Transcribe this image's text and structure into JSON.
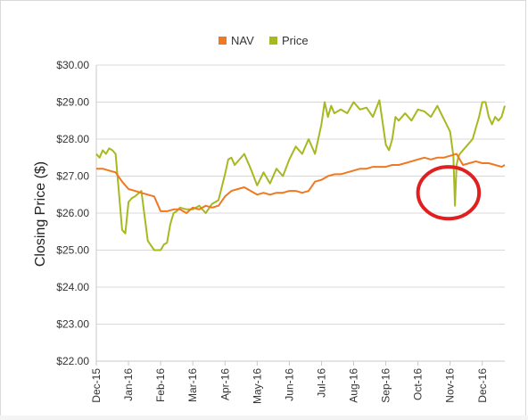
{
  "chart_data": {
    "type": "line",
    "ylabel": "Closing Price ($)",
    "ylim": [
      22,
      30
    ],
    "yticks": [
      "$22.00",
      "$23.00",
      "$24.00",
      "$25.00",
      "$26.00",
      "$27.00",
      "$28.00",
      "$29.00",
      "$30.00"
    ],
    "xticks": [
      "Dec-15",
      "Jan-16",
      "Feb-16",
      "Mar-16",
      "Apr-16",
      "May-16",
      "Jun-16",
      "Jul-16",
      "Aug-16",
      "Sep-16",
      "Oct-16",
      "Nov-16",
      "Dec-16"
    ],
    "grid": true,
    "legend_position": "top-center",
    "series": [
      {
        "name": "NAV",
        "color": "#f07820",
        "x": [
          0,
          0.2,
          0.4,
          0.6,
          0.8,
          1,
          1.2,
          1.4,
          1.6,
          1.8,
          2,
          2.2,
          2.4,
          2.6,
          2.8,
          3,
          3.2,
          3.4,
          3.6,
          3.8,
          4,
          4.2,
          4.4,
          4.6,
          4.8,
          5,
          5.2,
          5.4,
          5.6,
          5.8,
          6,
          6.2,
          6.4,
          6.6,
          6.8,
          7,
          7.2,
          7.4,
          7.6,
          7.8,
          8,
          8.2,
          8.4,
          8.6,
          8.8,
          9,
          9.2,
          9.4,
          9.6,
          9.8,
          10,
          10.2,
          10.4,
          10.6,
          10.8,
          11,
          11.2,
          11.4,
          11.6,
          11.8,
          12,
          12.2,
          12.4,
          12.6,
          12.7
        ],
        "y": [
          27.2,
          27.2,
          27.15,
          27.1,
          26.85,
          26.65,
          26.6,
          26.55,
          26.5,
          26.45,
          26.05,
          26.05,
          26.1,
          26.1,
          26.0,
          26.15,
          26.1,
          26.2,
          26.15,
          26.2,
          26.45,
          26.6,
          26.65,
          26.7,
          26.6,
          26.5,
          26.55,
          26.5,
          26.55,
          26.55,
          26.6,
          26.6,
          26.55,
          26.6,
          26.85,
          26.9,
          27.0,
          27.05,
          27.05,
          27.1,
          27.15,
          27.2,
          27.2,
          27.25,
          27.25,
          27.25,
          27.3,
          27.3,
          27.35,
          27.4,
          27.45,
          27.5,
          27.45,
          27.5,
          27.5,
          27.55,
          27.6,
          27.3,
          27.35,
          27.4,
          27.35,
          27.35,
          27.3,
          27.25,
          27.3
        ]
      },
      {
        "name": "Price",
        "color": "#a8b820",
        "x": [
          0,
          0.1,
          0.2,
          0.3,
          0.4,
          0.5,
          0.6,
          0.7,
          0.8,
          0.9,
          1.0,
          1.1,
          1.2,
          1.4,
          1.6,
          1.8,
          2.0,
          2.1,
          2.2,
          2.3,
          2.4,
          2.5,
          2.6,
          2.8,
          3.0,
          3.2,
          3.4,
          3.6,
          3.8,
          4.0,
          4.1,
          4.2,
          4.3,
          4.4,
          4.6,
          4.8,
          5.0,
          5.2,
          5.4,
          5.6,
          5.8,
          6.0,
          6.2,
          6.4,
          6.6,
          6.8,
          7.0,
          7.1,
          7.2,
          7.3,
          7.4,
          7.6,
          7.8,
          8.0,
          8.2,
          8.4,
          8.6,
          8.8,
          9.0,
          9.1,
          9.2,
          9.3,
          9.4,
          9.6,
          9.8,
          10.0,
          10.2,
          10.4,
          10.6,
          10.8,
          11.0,
          11.1,
          11.15,
          11.2,
          11.25,
          11.3,
          11.5,
          11.7,
          11.9,
          12.0,
          12.1,
          12.2,
          12.3,
          12.4,
          12.5,
          12.6,
          12.7
        ],
        "y": [
          27.6,
          27.5,
          27.7,
          27.6,
          27.75,
          27.7,
          27.6,
          26.6,
          25.55,
          25.45,
          26.3,
          26.4,
          26.45,
          26.6,
          25.25,
          25.0,
          25.0,
          25.15,
          25.2,
          25.7,
          26.0,
          26.05,
          26.15,
          26.1,
          26.1,
          26.2,
          26.0,
          26.25,
          26.35,
          27.05,
          27.45,
          27.5,
          27.3,
          27.4,
          27.6,
          27.2,
          26.75,
          27.1,
          26.8,
          27.2,
          27.0,
          27.45,
          27.8,
          27.6,
          28.0,
          27.6,
          28.4,
          29.0,
          28.6,
          28.9,
          28.7,
          28.8,
          28.7,
          29.0,
          28.8,
          28.85,
          28.6,
          29.05,
          27.85,
          27.7,
          28.0,
          28.6,
          28.5,
          28.7,
          28.5,
          28.8,
          28.75,
          28.6,
          28.9,
          28.55,
          28.2,
          27.55,
          26.2,
          27.3,
          27.5,
          27.6,
          27.8,
          28.0,
          28.6,
          29.0,
          29.0,
          28.6,
          28.4,
          28.6,
          28.5,
          28.6,
          28.9
        ]
      }
    ],
    "annotations": [
      {
        "type": "ellipse",
        "color": "#e02020",
        "cx": 10.95,
        "cy": 26.55,
        "rx": 0.95,
        "ry": 0.7
      }
    ]
  }
}
